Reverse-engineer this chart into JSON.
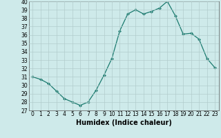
{
  "x": [
    0,
    1,
    2,
    3,
    4,
    5,
    6,
    7,
    8,
    9,
    10,
    11,
    12,
    13,
    14,
    15,
    16,
    17,
    18,
    19,
    20,
    21,
    22,
    23
  ],
  "y": [
    31.0,
    30.7,
    30.2,
    29.3,
    28.4,
    28.0,
    27.6,
    28.0,
    29.4,
    31.2,
    33.2,
    36.5,
    38.5,
    39.0,
    38.5,
    38.8,
    39.2,
    40.0,
    38.3,
    36.1,
    36.2,
    35.5,
    33.2,
    32.1
  ],
  "line_color": "#1a7a6e",
  "marker": "D",
  "marker_size": 2.0,
  "bg_color": "#ceeaea",
  "grid_color": "#b2cccc",
  "xlabel": "Humidex (Indice chaleur)",
  "ylim": [
    27,
    40
  ],
  "xlim": [
    -0.5,
    23.5
  ],
  "yticks": [
    27,
    28,
    29,
    30,
    31,
    32,
    33,
    34,
    35,
    36,
    37,
    38,
    39,
    40
  ],
  "xticks": [
    0,
    1,
    2,
    3,
    4,
    5,
    6,
    7,
    8,
    9,
    10,
    11,
    12,
    13,
    14,
    15,
    16,
    17,
    18,
    19,
    20,
    21,
    22,
    23
  ],
  "tick_fontsize": 5.5,
  "xlabel_fontsize": 7.0,
  "linewidth": 0.9
}
